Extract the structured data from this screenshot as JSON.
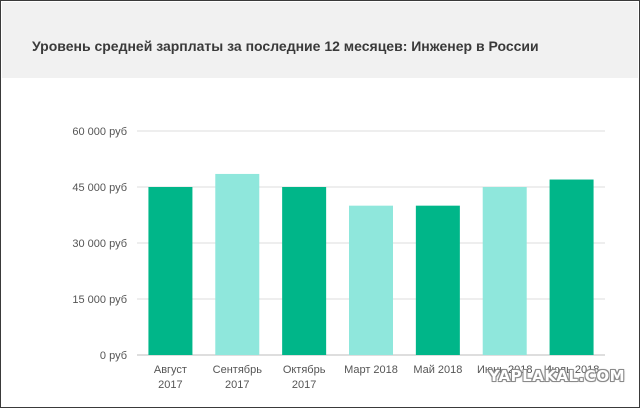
{
  "title": "Уровень средней зарплаты за последние 12 месяцев: Инженер в России",
  "watermark": "YAPLAKAL.COM",
  "colors": {
    "dark_bar": "#00b689",
    "light_bar": "#8fe7dc",
    "grid": "#dcdcdc",
    "axis_text": "#555555",
    "title": "#3a3a3a"
  },
  "chart_data": {
    "type": "bar",
    "categories": [
      [
        "Август",
        "2017"
      ],
      [
        "Сентябрь",
        "2017"
      ],
      [
        "Октябрь",
        "2017"
      ],
      [
        "Март 2018"
      ],
      [
        "Май 2018"
      ],
      [
        "Июнь 2018"
      ],
      [
        "Июль 2018"
      ]
    ],
    "values": [
      45000,
      48500,
      45000,
      40000,
      40000,
      45000,
      47000
    ],
    "bar_shades": [
      "dark",
      "light",
      "dark",
      "light",
      "dark",
      "light",
      "dark"
    ],
    "ylim": [
      0,
      60000
    ],
    "yticks": [
      0,
      15000,
      30000,
      45000,
      60000
    ],
    "ytick_labels": [
      "0 руб",
      "15 000 руб",
      "30 000 руб",
      "45 000 руб",
      "60 000 руб"
    ],
    "grid": true,
    "legend": "none"
  }
}
